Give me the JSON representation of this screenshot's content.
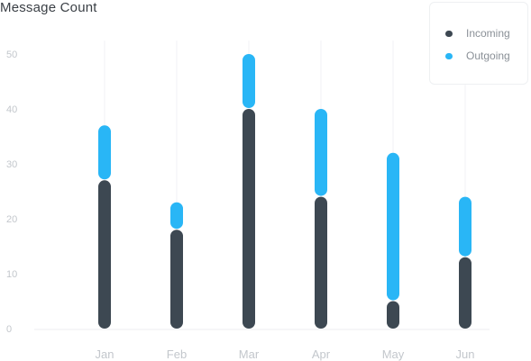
{
  "chart_data": {
    "type": "bar",
    "stacked": true,
    "title": "Message Count",
    "categories": [
      "Jan",
      "Feb",
      "Mar",
      "Apr",
      "May",
      "Jun"
    ],
    "series": [
      {
        "name": "Incoming",
        "color": "#3d4852",
        "values": [
          27,
          18,
          40,
          24,
          5,
          13
        ]
      },
      {
        "name": "Outgoing",
        "color": "#29b6f6",
        "values": [
          10,
          5,
          10,
          16,
          27,
          11
        ]
      }
    ],
    "ylim": [
      0,
      50
    ],
    "yticks": [
      0,
      10,
      20,
      30,
      40,
      50
    ],
    "grid": {
      "vertical": true,
      "horizontal": false
    },
    "legend": {
      "position": "top-right"
    },
    "xlabel": "",
    "ylabel": ""
  }
}
